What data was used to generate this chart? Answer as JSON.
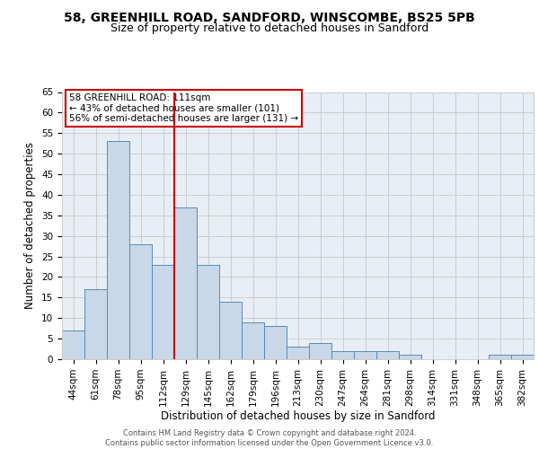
{
  "title1": "58, GREENHILL ROAD, SANDFORD, WINSCOMBE, BS25 5PB",
  "title2": "Size of property relative to detached houses in Sandford",
  "xlabel": "Distribution of detached houses by size in Sandford",
  "ylabel": "Number of detached properties",
  "categories": [
    "44sqm",
    "61sqm",
    "78sqm",
    "95sqm",
    "112sqm",
    "129sqm",
    "145sqm",
    "162sqm",
    "179sqm",
    "196sqm",
    "213sqm",
    "230sqm",
    "247sqm",
    "264sqm",
    "281sqm",
    "298sqm",
    "314sqm",
    "331sqm",
    "348sqm",
    "365sqm",
    "382sqm"
  ],
  "values": [
    7,
    17,
    53,
    28,
    23,
    37,
    23,
    14,
    9,
    8,
    3,
    4,
    2,
    2,
    2,
    1,
    0,
    0,
    0,
    1,
    1
  ],
  "bar_color": "#c8d8e8",
  "bar_edge_color": "#5a8ab5",
  "vline_x": 4.5,
  "vline_color": "#cc0000",
  "annotation_text": "58 GREENHILL ROAD: 111sqm\n← 43% of detached houses are smaller (101)\n56% of semi-detached houses are larger (131) →",
  "annotation_box_color": "#ffffff",
  "annotation_box_edge_color": "#cc0000",
  "ylim": [
    0,
    65
  ],
  "yticks": [
    0,
    5,
    10,
    15,
    20,
    25,
    30,
    35,
    40,
    45,
    50,
    55,
    60,
    65
  ],
  "grid_color": "#cccccc",
  "background_color": "#e8eef5",
  "footer_text": "Contains HM Land Registry data © Crown copyright and database right 2024.\nContains public sector information licensed under the Open Government Licence v3.0.",
  "title_fontsize": 10,
  "subtitle_fontsize": 9,
  "tick_fontsize": 7.5,
  "ylabel_fontsize": 8.5,
  "xlabel_fontsize": 8.5,
  "annotation_fontsize": 7.5,
  "footer_fontsize": 6.0
}
